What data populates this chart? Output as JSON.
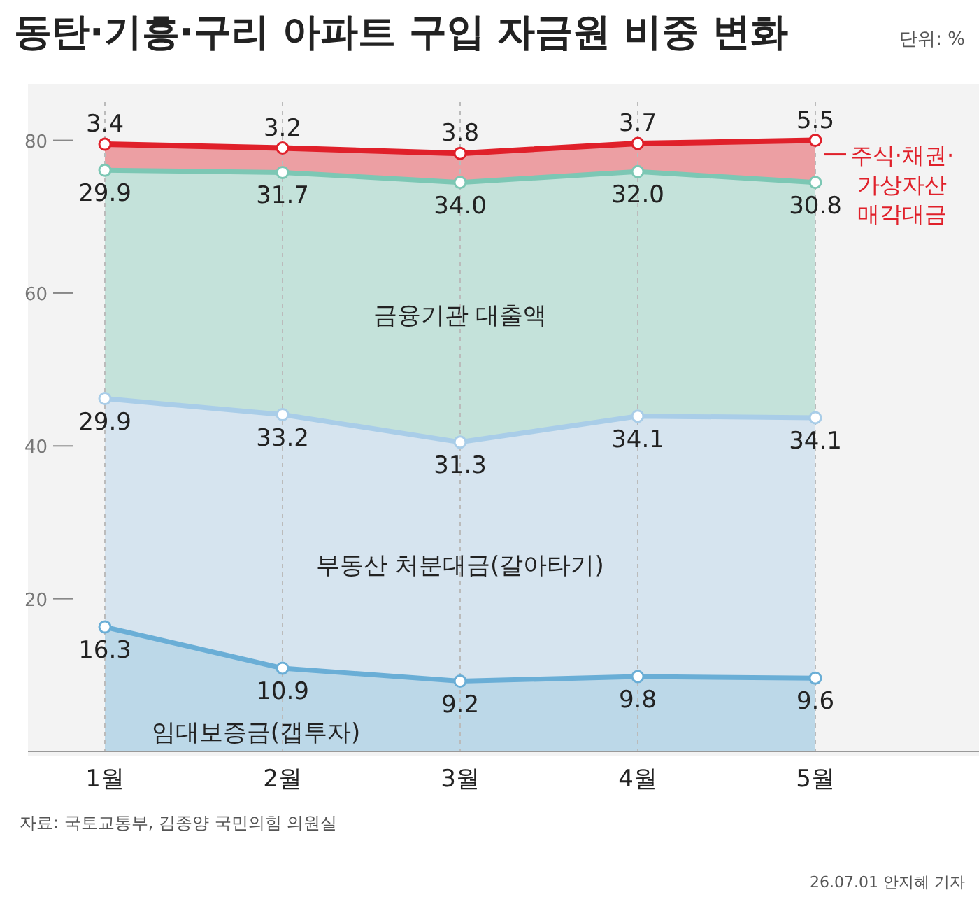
{
  "chart_data": {
    "type": "area",
    "stacked": true,
    "title": "동탄·기흥·구리 아파트 구입 자금원 비중 변화",
    "subtitle": "단위: %",
    "categories": [
      "1월",
      "2월",
      "3월",
      "4월",
      "5월"
    ],
    "series": [
      {
        "name": "임대보증금(갭투자)",
        "color": "#6aaed6",
        "values": [
          16.3,
          10.9,
          9.2,
          9.8,
          9.6
        ],
        "value_labels": [
          "16.3",
          "10.9",
          "9.2",
          "9.8",
          "9.6"
        ]
      },
      {
        "name": "부동산 처분대금(갈아타기)",
        "color": "#a9cde8",
        "values": [
          29.9,
          33.2,
          31.3,
          34.1,
          34.1
        ],
        "value_labels": [
          "29.9",
          "33.2",
          "31.3",
          "34.1",
          "34.1"
        ]
      },
      {
        "name": "금융기관 대출액",
        "color": "#7cc7b4",
        "values": [
          29.9,
          31.7,
          34.0,
          32.0,
          30.8
        ],
        "value_labels": [
          "29.9",
          "31.7",
          "34.0",
          "32.0",
          "30.8"
        ]
      },
      {
        "name": "주식·채권·가상자산 매각대금",
        "color": "#e0202a",
        "values": [
          3.4,
          3.2,
          3.8,
          3.7,
          5.5
        ],
        "value_labels": [
          "3.4",
          "3.2",
          "3.8",
          "3.7",
          "5.5"
        ]
      }
    ],
    "ylim": [
      0,
      85
    ],
    "yticks": [
      20,
      40,
      60,
      80
    ],
    "grid": "x",
    "marker": "circle",
    "annotations": [
      "자료: 국토교통부, 김종양 국민의힘 의원실",
      "26.07.01 안지혜 기자"
    ]
  }
}
